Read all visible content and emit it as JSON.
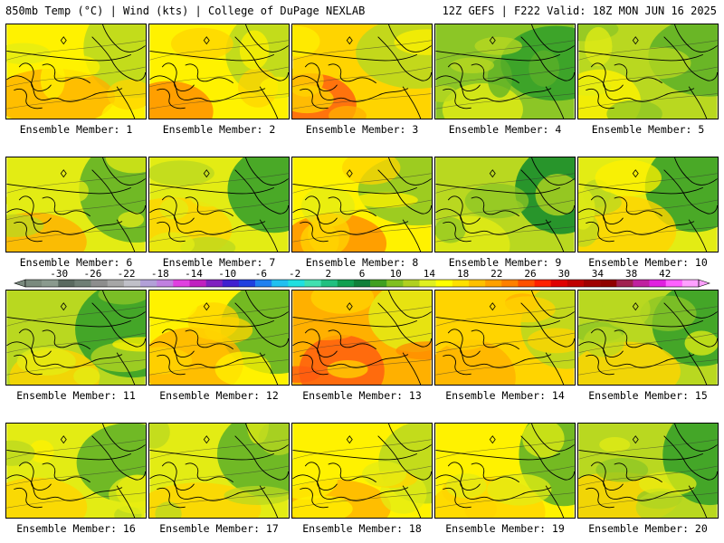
{
  "header": {
    "left": "850mb Temp (°C) | Wind (kts) | College of DuPage NEXLAB",
    "right": "12Z GEFS | F222 Valid: 18Z MON JUN 16 2025"
  },
  "member_label_prefix": "Ensemble Member:",
  "members": [
    1,
    2,
    3,
    4,
    5,
    6,
    7,
    8,
    9,
    10,
    11,
    12,
    13,
    14,
    15,
    16,
    17,
    18,
    19,
    20
  ],
  "member_warmth": [
    0.55,
    0.62,
    0.75,
    0.2,
    0.3,
    0.45,
    0.38,
    0.6,
    0.25,
    0.45,
    0.32,
    0.58,
    0.9,
    0.7,
    0.3,
    0.4,
    0.42,
    0.6,
    0.5,
    0.35
  ],
  "colorbar": {
    "ticks": [
      "-30",
      "-26",
      "-22",
      "-18",
      "-14",
      "-10",
      "-6",
      "-2",
      "2",
      "6",
      "10",
      "14",
      "18",
      "22",
      "26",
      "30",
      "34",
      "38",
      "42"
    ],
    "colors": [
      "#7a8a7e",
      "#8a9a8e",
      "#5a6a60",
      "#6f7f75",
      "#8d8d8d",
      "#a6a6a6",
      "#c0c0c8",
      "#b2a0d8",
      "#c080e0",
      "#e040e0",
      "#c020c0",
      "#8020c0",
      "#4020d0",
      "#2040e0",
      "#2080f0",
      "#20c0f0",
      "#20e0e0",
      "#40e0b0",
      "#20c080",
      "#10a050",
      "#10803a",
      "#40a020",
      "#80c020",
      "#b0d020",
      "#e0f020",
      "#ffff00",
      "#ffe000",
      "#ffc000",
      "#ffa000",
      "#ff8000",
      "#ff5000",
      "#ff2000",
      "#e00000",
      "#c00000",
      "#a00000",
      "#900000",
      "#a02050",
      "#c020a0",
      "#e020e0",
      "#ff60ff",
      "#ffa0ff"
    ],
    "vmin": -34,
    "vmax": 46
  }
}
